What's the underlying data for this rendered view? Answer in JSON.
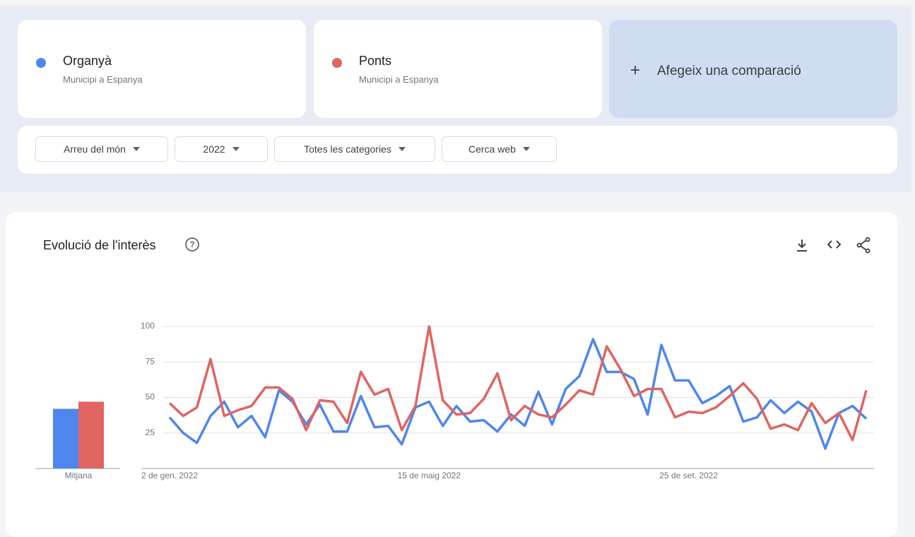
{
  "terms": [
    {
      "subtitle": "Municipi a Espanya"
    },
    {
      "subtitle": "Municipi a Espanya"
    }
  ],
  "add_comparison": "Afegeix una comparació",
  "filters": [
    "Arreu del món",
    "2022",
    "Totes les categories",
    "Cerca web"
  ],
  "chart_data": {
    "type": "line",
    "title": "Evolució de l'interès",
    "average_label": "Mitjana",
    "categories": [
      "2 de gen. 2022",
      null,
      null,
      null,
      null,
      null,
      null,
      null,
      null,
      null,
      null,
      null,
      null,
      null,
      null,
      null,
      null,
      null,
      null,
      "15 de maig 2022",
      null,
      null,
      null,
      null,
      null,
      null,
      null,
      null,
      null,
      null,
      null,
      null,
      null,
      null,
      null,
      null,
      null,
      null,
      "25 de set. 2022",
      null,
      null,
      null,
      null,
      null,
      null,
      null,
      null,
      null,
      null,
      null,
      null,
      null
    ],
    "series": [
      {
        "name": "Organyà",
        "color": "#4f86ec",
        "average": 42,
        "values": [
          36,
          25,
          18,
          37,
          47,
          29,
          37,
          22,
          55,
          47,
          31,
          45,
          26,
          26,
          51,
          29,
          30,
          17,
          43,
          47,
          30,
          44,
          33,
          34,
          26,
          38,
          30,
          54,
          31,
          56,
          65,
          91,
          68,
          68,
          63,
          38,
          87,
          62,
          62,
          46,
          51,
          58,
          33,
          36,
          48,
          39,
          47,
          40,
          14,
          39,
          44,
          35
        ]
      },
      {
        "name": "Ponts",
        "color": "#e06461",
        "average": 47,
        "values": [
          46,
          37,
          43,
          77,
          37,
          41,
          44,
          57,
          57,
          49,
          27,
          48,
          47,
          32,
          68,
          52,
          56,
          27,
          44,
          100,
          48,
          38,
          39,
          49,
          67,
          34,
          44,
          38,
          36,
          45,
          55,
          52,
          86,
          70,
          51,
          56,
          56,
          36,
          40,
          39,
          43,
          51,
          60,
          49,
          28,
          31,
          27,
          46,
          32,
          39,
          20,
          55
        ]
      }
    ],
    "ylim": [
      0,
      100
    ],
    "yticks": [
      25,
      50,
      75,
      100
    ],
    "grid": true
  }
}
